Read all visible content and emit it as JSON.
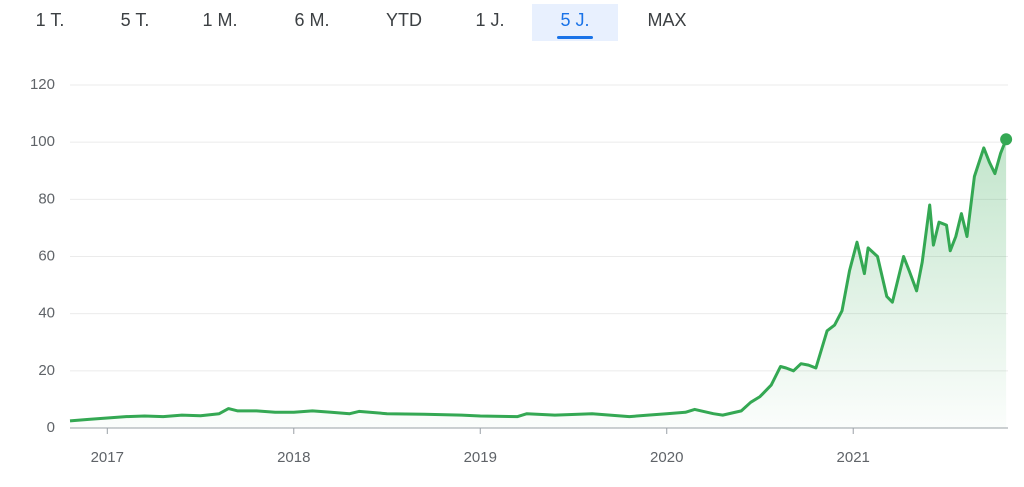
{
  "tabs": [
    "1 T.",
    "5 T.",
    "1 M.",
    "6 M.",
    "YTD",
    "1 J.",
    "5 J.",
    "MAX"
  ],
  "selected_tab": 6,
  "chart_data": {
    "type": "line",
    "x": [
      2016.8,
      2016.9,
      2017.0,
      2017.1,
      2017.2,
      2017.3,
      2017.4,
      2017.5,
      2017.6,
      2017.65,
      2017.7,
      2017.8,
      2017.9,
      2018.0,
      2018.1,
      2018.2,
      2018.3,
      2018.35,
      2018.5,
      2018.7,
      2018.9,
      2019.0,
      2019.2,
      2019.25,
      2019.4,
      2019.6,
      2019.8,
      2019.9,
      2020.0,
      2020.1,
      2020.15,
      2020.25,
      2020.3,
      2020.4,
      2020.45,
      2020.5,
      2020.56,
      2020.61,
      2020.64,
      2020.68,
      2020.72,
      2020.76,
      2020.8,
      2020.86,
      2020.9,
      2020.94,
      2020.98,
      2021.02,
      2021.06,
      2021.08,
      2021.13,
      2021.18,
      2021.21,
      2021.27,
      2021.3,
      2021.34,
      2021.37,
      2021.41,
      2021.43,
      2021.46,
      2021.5,
      2021.52,
      2021.55,
      2021.58,
      2021.61,
      2021.65,
      2021.7,
      2021.73,
      2021.76,
      2021.79,
      2021.82
    ],
    "series": [
      {
        "color": "#34a853",
        "values": [
          2.5,
          3,
          3.5,
          4,
          4.2,
          4,
          4.5,
          4.3,
          5,
          6.8,
          6,
          6,
          5.5,
          5.5,
          6,
          5.5,
          5,
          5.8,
          5,
          4.8,
          4.5,
          4.2,
          4,
          5,
          4.5,
          5,
          4,
          4.5,
          5,
          5.5,
          6.5,
          5,
          4.5,
          6,
          9,
          11,
          15,
          21.5,
          21,
          20,
          22.5,
          22,
          21,
          34,
          36,
          41,
          55,
          65,
          54,
          63,
          60,
          46,
          44,
          60,
          55,
          48,
          58,
          78,
          64,
          72,
          71,
          62,
          67,
          75,
          67,
          88,
          98,
          93,
          89,
          96,
          101
        ]
      }
    ],
    "xlim": [
      2016.8,
      2021.83
    ],
    "ylim": [
      0,
      120
    ],
    "xticks": [
      2017,
      2018,
      2019,
      2020,
      2021
    ],
    "yticks": [
      0,
      20,
      40,
      60,
      80,
      100,
      120
    ],
    "grid": true
  }
}
